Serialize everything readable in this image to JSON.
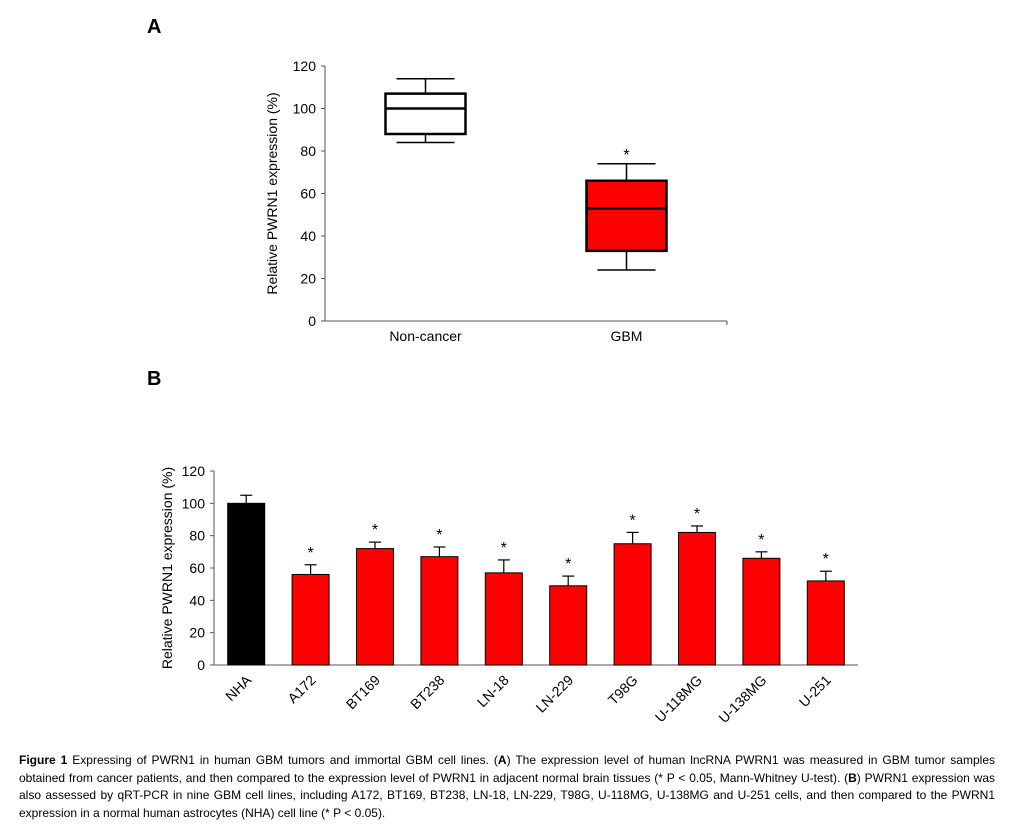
{
  "panelA": {
    "letter": "A",
    "chart_data": {
      "type": "box",
      "ylabel": "Relative PWRN1 expression (%)",
      "ylim": [
        0,
        120
      ],
      "yticks": [
        0,
        20,
        40,
        60,
        80,
        100,
        120
      ],
      "groups": [
        {
          "name": "Non-cancer",
          "min": 84,
          "q1": 88,
          "median": 100,
          "q3": 107,
          "max": 114,
          "color": "#ffffff",
          "sig": ""
        },
        {
          "name": "GBM",
          "min": 24,
          "q1": 33,
          "median": 53,
          "q3": 66,
          "max": 74,
          "color": "#ff0000",
          "sig": "*"
        }
      ]
    }
  },
  "panelB": {
    "letter": "B",
    "chart_data": {
      "type": "bar",
      "ylabel": "Relative PWRN1 expression (%)",
      "ylim": [
        0,
        120
      ],
      "yticks": [
        0,
        20,
        40,
        60,
        80,
        100,
        120
      ],
      "categories": [
        "NHA",
        "A172",
        "BT169",
        "BT238",
        "LN-18",
        "LN-229",
        "T98G",
        "U-118MG",
        "U-138MG",
        "U-251"
      ],
      "values": [
        100,
        56,
        72,
        67,
        57,
        49,
        75,
        82,
        66,
        52
      ],
      "errors": [
        5,
        6,
        4,
        6,
        8,
        6,
        7,
        4,
        4,
        6
      ],
      "colors": [
        "#000000",
        "#ff0000",
        "#ff0000",
        "#ff0000",
        "#ff0000",
        "#ff0000",
        "#ff0000",
        "#ff0000",
        "#ff0000",
        "#ff0000"
      ],
      "sig": [
        "",
        "*",
        "*",
        "*",
        "*",
        "*",
        "*",
        "*",
        "*",
        "*"
      ]
    }
  },
  "caption": {
    "label": "Figure 1",
    "part1": " Expressing of PWRN1 in human GBM tumors and immortal GBM cell lines. (",
    "letterA": "A",
    "part2": ") The expression level of human lncRNA PWRN1 was measured in GBM tumor samples obtained from cancer patients, and then compared to the expression level of PWRN1 in adjacent normal brain tissues (* P < 0.05, Mann-Whitney U-test). (",
    "letterB": "B",
    "part3": ") PWRN1 expression was also assessed by qRT-PCR in nine GBM cell lines, including A172, BT169, BT238, LN-18, LN-229, T98G, U-118MG, U-138MG and U-251 cells, and then compared to the PWRN1 expression in a normal human astrocytes (NHA) cell line (* P < 0.05)."
  }
}
